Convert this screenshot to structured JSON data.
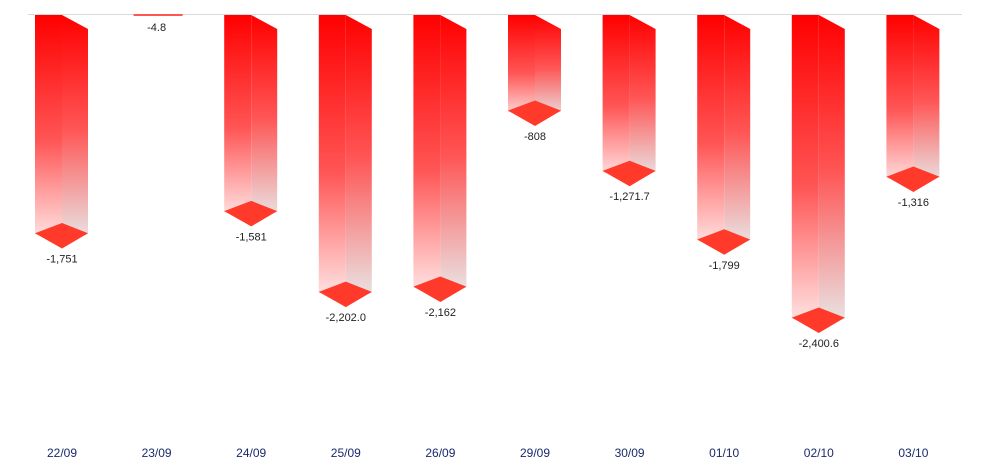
{
  "chart_data": {
    "type": "bar",
    "style": "3d-column",
    "categories": [
      "22/09",
      "23/09",
      "24/09",
      "25/09",
      "26/09",
      "29/09",
      "30/09",
      "01/10",
      "02/10",
      "03/10"
    ],
    "series": [
      {
        "values": [
          -1751,
          -4.8,
          -1581,
          -2202.0,
          -2162,
          -808,
          -1271.7,
          -1799,
          -2400.6,
          -1316
        ],
        "data_labels": [
          "-1,751",
          "-4.8",
          "-1,581",
          "-2,202.0",
          "-2,162",
          "-808",
          "-1,271.7",
          "-1,799",
          "-2,400.6",
          "-1,316"
        ]
      }
    ],
    "title": "",
    "xlabel": "",
    "ylabel": "",
    "ylim": [
      -2400.6,
      0
    ],
    "grid": false,
    "legend": "none",
    "colors": {
      "bar_top": "#ff0000",
      "bar_mid": "#ff5555",
      "bar_fade": "#ffe8e8",
      "side_fade": "#e8e8e8",
      "cap": "#ff3a2a",
      "baseline": "#d9d9d9",
      "category_text": "#1a2a6c",
      "value_text": "#222222"
    }
  }
}
